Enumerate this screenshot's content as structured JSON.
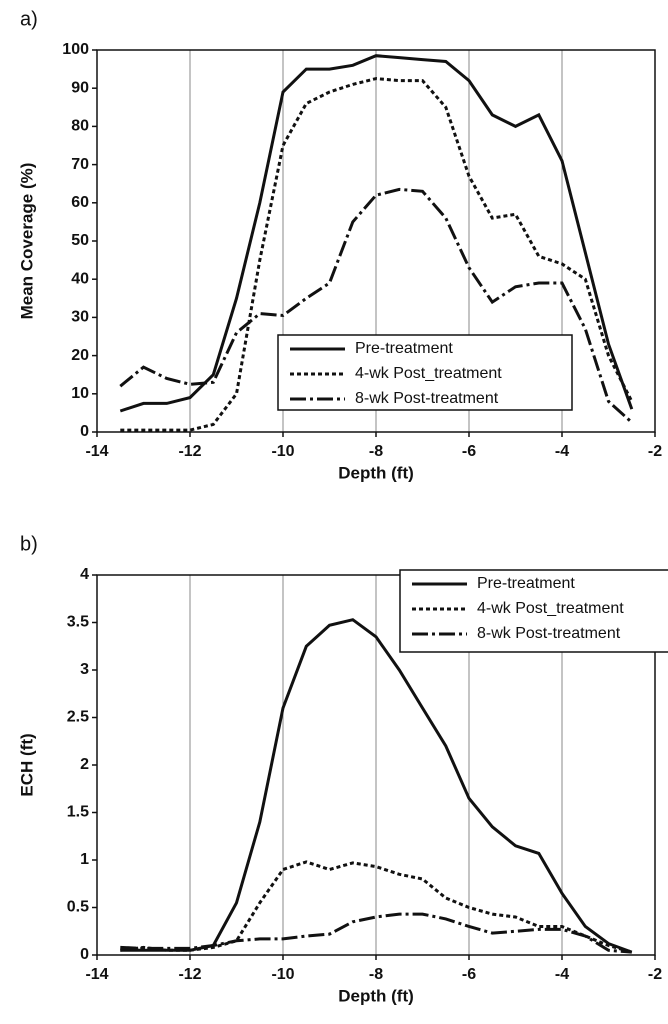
{
  "chart_data": [
    {
      "type": "line",
      "label": "a)",
      "xlabel": "Depth (ft)",
      "ylabel": "Mean Coverage (%)",
      "x": [
        -13.5,
        -13,
        -12.5,
        -12,
        -11.5,
        -11,
        -10.5,
        -10,
        -9.5,
        -9,
        -8.5,
        -8,
        -7.5,
        -7,
        -6.5,
        -6,
        -5.5,
        -5,
        -4.5,
        -4,
        -3.5,
        -3,
        -2.5
      ],
      "series": [
        {
          "name": "Pre-treatment",
          "color": "#111111",
          "dash": "solid",
          "values": [
            5.5,
            7.5,
            7.5,
            9,
            15,
            35,
            60,
            89,
            95,
            95,
            96,
            98.5,
            98,
            97.5,
            97,
            92,
            83,
            80,
            83,
            71,
            47,
            23,
            6
          ]
        },
        {
          "name": "4-wk Post_treatment",
          "color": "#111111",
          "dash": "dotted",
          "values": [
            0.5,
            0.5,
            0.5,
            0.5,
            2,
            10,
            45,
            75,
            86,
            89,
            91,
            92.5,
            92,
            92,
            85,
            67,
            56,
            57,
            46,
            44,
            40,
            20,
            8
          ]
        },
        {
          "name": "8-wk Post-treatment",
          "color": "#111111",
          "dash": "dashdot",
          "values": [
            12,
            17,
            14,
            12.5,
            13,
            26,
            31,
            30.5,
            35,
            39,
            55,
            62,
            63.5,
            63,
            56,
            43,
            34,
            38,
            39,
            39,
            27,
            8,
            2.5
          ]
        }
      ],
      "xlim": [
        -14,
        -2
      ],
      "xticks": [
        -14,
        -12,
        -10,
        -8,
        -6,
        -4,
        -2
      ],
      "ylim": [
        0,
        100
      ],
      "yticks": [
        0,
        10,
        20,
        30,
        40,
        50,
        60,
        70,
        80,
        90,
        100
      ],
      "grid": "x",
      "legend": "lower right"
    },
    {
      "type": "line",
      "label": "b)",
      "xlabel": "Depth (ft)",
      "ylabel": "ECH (ft)",
      "x": [
        -13.5,
        -13,
        -12.5,
        -12,
        -11.5,
        -11,
        -10.5,
        -10,
        -9.5,
        -9,
        -8.5,
        -8,
        -7.5,
        -7,
        -6.5,
        -6,
        -5.5,
        -5,
        -4.5,
        -4,
        -3.5,
        -3,
        -2.5
      ],
      "series": [
        {
          "name": "Pre-treatment",
          "color": "#111111",
          "dash": "solid",
          "values": [
            0.05,
            0.05,
            0.05,
            0.05,
            0.1,
            0.55,
            1.4,
            2.6,
            3.25,
            3.47,
            3.53,
            3.35,
            3.0,
            2.6,
            2.2,
            1.65,
            1.35,
            1.15,
            1.07,
            0.65,
            0.3,
            0.12,
            0.03
          ]
        },
        {
          "name": "4-wk Post_treatment",
          "color": "#111111",
          "dash": "dotted",
          "values": [
            0.05,
            0.08,
            0.05,
            0.05,
            0.08,
            0.15,
            0.55,
            0.9,
            0.98,
            0.9,
            0.97,
            0.93,
            0.85,
            0.8,
            0.6,
            0.5,
            0.43,
            0.4,
            0.3,
            0.3,
            0.2,
            0.1,
            0.03
          ]
        },
        {
          "name": "8-wk Post-treatment",
          "color": "#111111",
          "dash": "dashdot",
          "values": [
            0.08,
            0.07,
            0.07,
            0.07,
            0.1,
            0.15,
            0.17,
            0.17,
            0.2,
            0.22,
            0.35,
            0.4,
            0.43,
            0.43,
            0.38,
            0.3,
            0.23,
            0.25,
            0.27,
            0.27,
            0.2,
            0.05,
            0.03
          ]
        }
      ],
      "xlim": [
        -14,
        -2
      ],
      "xticks": [
        -14,
        -12,
        -10,
        -8,
        -6,
        -4,
        -2
      ],
      "ylim": [
        0,
        4
      ],
      "yticks": [
        0,
        0.5,
        1,
        1.5,
        2,
        2.5,
        3,
        3.5,
        4
      ],
      "grid": "x",
      "legend": "upper right"
    }
  ]
}
